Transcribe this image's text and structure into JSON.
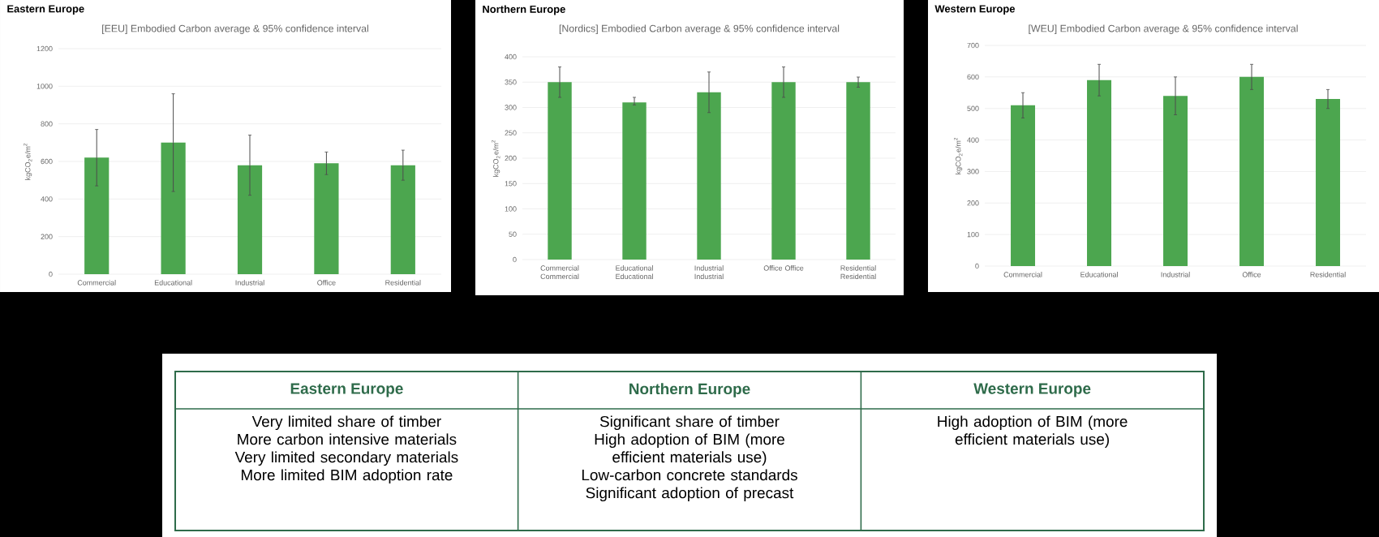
{
  "chart_data": [
    {
      "type": "bar",
      "title": "Eastern Europe",
      "subtitle": "[EEU] Embodied Carbon average & 95% confidence interval",
      "ylabel": "kgCO$_{2}$e/m$^{2}$",
      "categories": [
        "Commercial",
        "Educational",
        "Industrial",
        "Office",
        "Residential"
      ],
      "values": [
        620,
        700,
        580,
        590,
        580
      ],
      "errors": [
        [
          470,
          770
        ],
        [
          440,
          960
        ],
        [
          420,
          740
        ],
        [
          530,
          650
        ],
        [
          500,
          660
        ]
      ],
      "color": "#4ca64f",
      "ylim": [
        0,
        1200
      ],
      "yticks": [
        0,
        200,
        400,
        600,
        800,
        1000,
        1200
      ],
      "grid": "y"
    },
    {
      "type": "bar",
      "title": "Northern Europe",
      "subtitle": "[Nordics] Embodied Carbon average & 95% confidence interval",
      "ylabel": "kgCO$_{2}$e/m$^{2}$",
      "categories": [
        "Commercial Commercial",
        "Educational Educational",
        "Industrial Industrial",
        "Office Office",
        "Residential Residential"
      ],
      "values": [
        350,
        310,
        330,
        350,
        350
      ],
      "errors": [
        [
          320,
          380
        ],
        [
          305,
          320
        ],
        [
          290,
          370
        ],
        [
          320,
          380
        ],
        [
          340,
          360
        ]
      ],
      "color": "#4ca64f",
      "ylim": [
        0,
        400
      ],
      "yticks": [
        0,
        50,
        100,
        150,
        200,
        250,
        300,
        350,
        400
      ],
      "grid": "y"
    },
    {
      "type": "bar",
      "title": "Western Europe",
      "subtitle": "[WEU] Embodied Carbon average & 95% confidence interval",
      "ylabel": "kgCO$_{2}$e/m$^{2}$",
      "categories": [
        "Commercial",
        "Educational",
        "Industrial",
        "Office",
        "Residential"
      ],
      "values": [
        510,
        590,
        540,
        600,
        530
      ],
      "errors": [
        [
          470,
          550
        ],
        [
          540,
          640
        ],
        [
          480,
          600
        ],
        [
          560,
          640
        ],
        [
          500,
          560
        ]
      ],
      "color": "#4ca64f",
      "ylim": [
        0,
        700
      ],
      "yticks": [
        0,
        100,
        200,
        300,
        400,
        500,
        600,
        700
      ],
      "grid": "y"
    },
    {
      "type": "other",
      "categories": [
        "Eastern Europe",
        "Northern Europe",
        "Western Europe"
      ],
      "annotations": [
        {
          "text": "Very limited share of timber",
          "x": "Eastern Europe"
        },
        {
          "text": "More carbon intensive materials",
          "x": "Eastern Europe"
        },
        {
          "text": "Very limited secondary materials",
          "x": "Eastern Europe"
        },
        {
          "text": "More limited BIM adoption rate",
          "x": "Eastern Europe"
        },
        {
          "text": "Significant share of timber",
          "x": "Northern Europe"
        },
        {
          "text": "High adoption of BIM (more efficient materials use)",
          "x": "Northern Europe"
        },
        {
          "text": "Low-carbon concrete standards",
          "x": "Northern Europe"
        },
        {
          "text": "Significant adoption of precast",
          "x": "Northern Europe"
        },
        {
          "text": "High adoption of BIM (more efficient materials use)",
          "x": "Western Europe"
        }
      ]
    }
  ]
}
